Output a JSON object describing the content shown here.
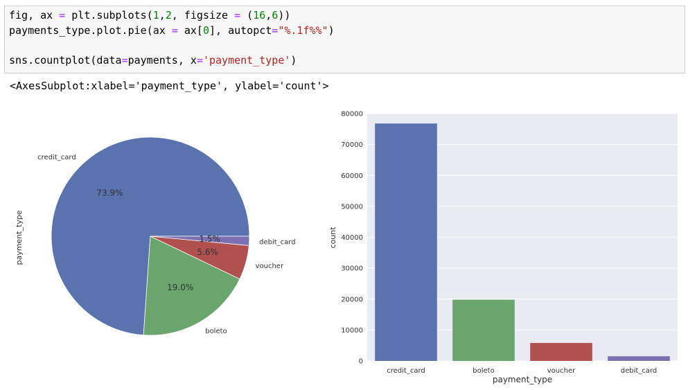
{
  "notebook": {
    "code_lines": [
      [
        {
          "t": "fig, ax "
        },
        {
          "t": "=",
          "c": "o"
        },
        {
          "t": " plt.subplots("
        },
        {
          "t": "1",
          "c": "n"
        },
        {
          "t": ","
        },
        {
          "t": "2",
          "c": "n"
        },
        {
          "t": ", figsize "
        },
        {
          "t": "=",
          "c": "o"
        },
        {
          "t": " ("
        },
        {
          "t": "16",
          "c": "n"
        },
        {
          "t": ","
        },
        {
          "t": "6",
          "c": "n"
        },
        {
          "t": "))"
        }
      ],
      [
        {
          "t": "payments_type.plot.pie(ax "
        },
        {
          "t": "=",
          "c": "o"
        },
        {
          "t": " ax["
        },
        {
          "t": "0",
          "c": "n"
        },
        {
          "t": "], autopct"
        },
        {
          "t": "=",
          "c": "o"
        },
        {
          "t": "\"%.1f%%\"",
          "c": "s"
        },
        {
          "t": ")"
        }
      ],
      [
        {
          "t": ""
        }
      ],
      [
        {
          "t": "sns.countplot(data"
        },
        {
          "t": "=",
          "c": "o"
        },
        {
          "t": "payments, x"
        },
        {
          "t": "=",
          "c": "o"
        },
        {
          "t": "'payment_type'",
          "c": "s"
        },
        {
          "t": ")"
        }
      ]
    ],
    "output_text": "<AxesSubplot:xlabel='payment_type', ylabel='count'>"
  },
  "colors": {
    "credit_card": "#5a72ad",
    "boleto": "#6aa56e",
    "voucher": "#b0504f",
    "debit_card": "#7c70b2",
    "axes_bg": "#eaeaf2"
  },
  "chart_data": [
    {
      "type": "pie",
      "ylabel": "payment_type",
      "slices": [
        {
          "label": "credit_card",
          "pct_label": "73.9%",
          "value": 73.9
        },
        {
          "label": "boleto",
          "pct_label": "19.0%",
          "value": 19.0
        },
        {
          "label": "voucher",
          "pct_label": "5.6%",
          "value": 5.6
        },
        {
          "label": "debit_card",
          "pct_label": "1.5%",
          "value": 1.5
        }
      ],
      "start_angle_deg": 0,
      "direction": "counterclockwise"
    },
    {
      "type": "bar",
      "categories": [
        "credit_card",
        "boleto",
        "voucher",
        "debit_card"
      ],
      "values": [
        76800,
        19800,
        5800,
        1500
      ],
      "xlabel": "payment_type",
      "ylabel": "count",
      "ylim": [
        0,
        80000
      ],
      "yticks": [
        0,
        10000,
        20000,
        30000,
        40000,
        50000,
        60000,
        70000,
        80000
      ],
      "grid": true
    }
  ]
}
